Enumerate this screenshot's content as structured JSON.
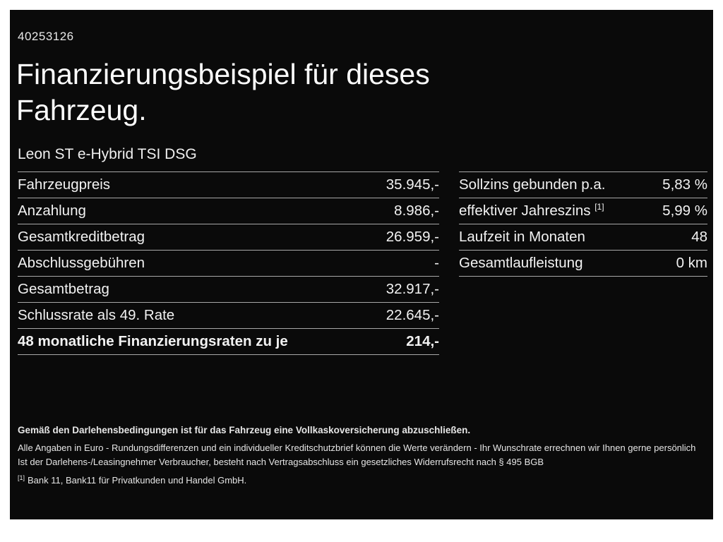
{
  "document": {
    "id_number": "40253126",
    "title_line1": "Finanzierungsbeispiel für dieses",
    "title_line2": "Fahrzeug.",
    "vehicle_model": "Leon ST e-Hybrid TSI DSG"
  },
  "finance_table": {
    "rows": [
      {
        "label": "Fahrzeugpreis",
        "value": "35.945,-"
      },
      {
        "label": "Anzahlung",
        "value": "8.986,-"
      },
      {
        "label": "Gesamtkreditbetrag",
        "value": "26.959,-"
      },
      {
        "label": "Abschlussgebühren",
        "value": "-"
      },
      {
        "label": "Gesamtbetrag",
        "value": "32.917,-"
      },
      {
        "label": "Schlussrate als 49. Rate",
        "value": "22.645,-"
      },
      {
        "label": "48 monatliche Finanzierungsraten zu je",
        "value": "214,-"
      }
    ]
  },
  "conditions_table": {
    "rows": [
      {
        "label": "Sollzins gebunden p.a.",
        "value": "5,83 %"
      },
      {
        "label": "effektiver Jahreszins",
        "sup": "[1]",
        "value": "5,99 %"
      },
      {
        "label": "Laufzeit in Monaten",
        "value": "48"
      },
      {
        "label": "Gesamtlaufleistung",
        "value": "0 km"
      }
    ]
  },
  "footer": {
    "line_bold": "Gemäß den Darlehensbedingungen ist für das Fahrzeug eine Vollkaskoversicherung abzuschließen.",
    "line2": "Alle Angaben in Euro - Rundungsdifferenzen und ein individueller Kreditschutzbrief können die Werte verändern - Ihr Wunschrate errechnen wir Ihnen gerne persönlich",
    "line3": "Ist der Darlehens-/Leasingnehmer Verbraucher, besteht nach Vertragsabschluss ein gesetzliches Widerrufsrecht nach § 495 BGB",
    "footnote_marker": "[1]",
    "footnote_text": "Bank 11, Bank11 für Privatkunden und Handel GmbH."
  },
  "colors": {
    "background": "#0a0a0a",
    "frame": "#ffffff",
    "text": "#f2f2f2",
    "separator": "#a8a8a8"
  }
}
